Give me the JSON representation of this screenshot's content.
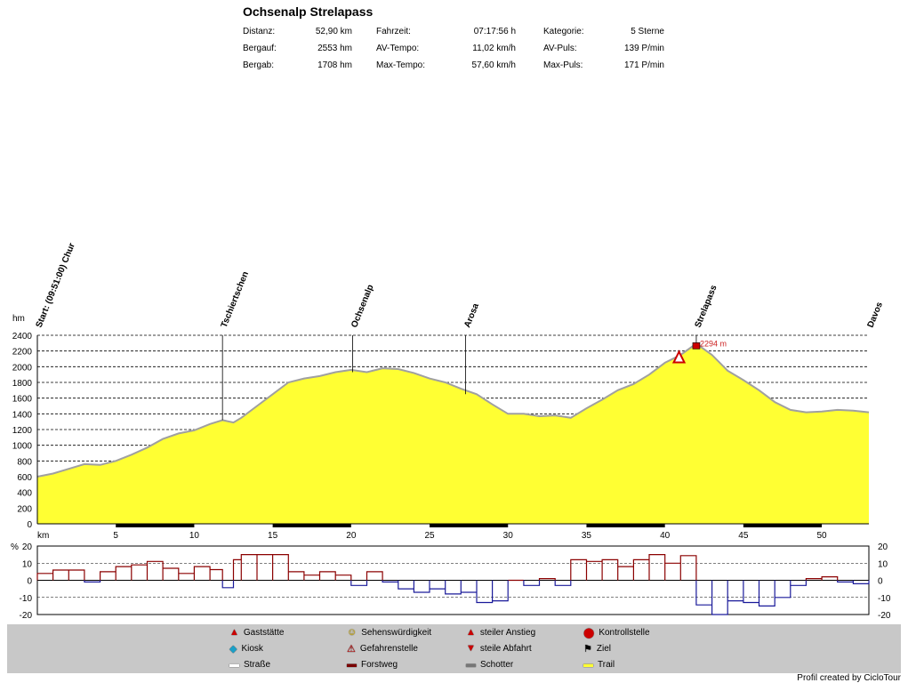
{
  "header": {
    "title": "Ochsenalp Strelapass",
    "stats": [
      {
        "label": "Distanz:",
        "value": "52,90 km"
      },
      {
        "label": "Bergauf:",
        "value": "2553 hm"
      },
      {
        "label": "Bergab:",
        "value": "1708 hm"
      },
      {
        "label": "Fahrzeit:",
        "value": "07:17:56 h"
      },
      {
        "label": "AV-Tempo:",
        "value": "11,02 km/h"
      },
      {
        "label": "Max-Tempo:",
        "value": "57,60 km/h"
      },
      {
        "label": "Kategorie:",
        "value": "5 Sterne"
      },
      {
        "label": "AV-Puls:",
        "value": "139 P/min"
      },
      {
        "label": "Max-Puls:",
        "value": "171 P/min"
      }
    ]
  },
  "chart_data": [
    {
      "type": "area",
      "ylabel": "hm",
      "xlabel": "km",
      "ylim": [
        0,
        2400
      ],
      "xlim": [
        0,
        53
      ],
      "yticks": [
        0,
        200,
        400,
        600,
        800,
        1000,
        1200,
        1400,
        1600,
        1800,
        2000,
        2200,
        2400
      ],
      "xticks": [
        5,
        10,
        15,
        20,
        25,
        30,
        35,
        40,
        45,
        50
      ],
      "grid": true,
      "x": [
        0,
        1,
        2,
        3,
        4,
        5,
        6,
        7,
        8,
        9,
        10,
        11,
        11.8,
        12.5,
        13,
        14,
        15,
        16,
        17,
        18,
        19,
        20,
        21,
        22,
        23,
        24,
        25,
        26,
        27,
        28,
        29,
        30,
        31,
        32,
        33,
        34,
        35,
        36,
        37,
        38,
        39,
        40,
        41,
        42,
        43,
        44,
        45,
        46,
        47,
        48,
        49,
        50,
        51,
        52,
        53
      ],
      "y": [
        600,
        640,
        700,
        760,
        750,
        800,
        880,
        970,
        1080,
        1150,
        1190,
        1270,
        1320,
        1290,
        1350,
        1500,
        1650,
        1800,
        1850,
        1880,
        1930,
        1960,
        1930,
        1980,
        1970,
        1920,
        1850,
        1800,
        1720,
        1650,
        1520,
        1400,
        1400,
        1370,
        1380,
        1350,
        1470,
        1580,
        1700,
        1780,
        1900,
        2050,
        2150,
        2294,
        2150,
        1950,
        1830,
        1700,
        1550,
        1450,
        1420,
        1430,
        1450,
        1440,
        1420
      ],
      "waypoints": [
        {
          "km": 0,
          "label": "Start: (09:51:00) Chur"
        },
        {
          "km": 11.8,
          "label": "Tschiertschen"
        },
        {
          "km": 20.1,
          "label": "Ochsenalp"
        },
        {
          "km": 27.3,
          "label": "Arosa"
        },
        {
          "km": 42,
          "label": "Strelapass"
        },
        {
          "km": 53,
          "label": "Davos"
        }
      ],
      "peak_label": {
        "km": 42,
        "text": "2294 m"
      }
    },
    {
      "type": "line",
      "ylabel": "%",
      "ylim": [
        -20,
        20
      ],
      "yticks": [
        -20,
        -10,
        0,
        10,
        20
      ],
      "right_yticks": [
        -20,
        -10,
        0,
        10,
        20
      ],
      "xlim": [
        0,
        53
      ],
      "grid": true
    }
  ],
  "legend": [
    {
      "icon": "house-icon",
      "label": "Gaststätte"
    },
    {
      "icon": "kiosk-icon",
      "label": "Kiosk"
    },
    {
      "icon": "road-swatch-icon",
      "label": "Straße"
    },
    {
      "icon": "smiley-icon",
      "label": "Sehenswürdigkeit"
    },
    {
      "icon": "warning-icon",
      "label": "Gefahrenstelle"
    },
    {
      "icon": "forest-swatch-icon",
      "label": "Forstweg"
    },
    {
      "icon": "steep-up-icon",
      "label": "steiler Anstieg"
    },
    {
      "icon": "steep-down-icon",
      "label": "steile Abfahrt"
    },
    {
      "icon": "gravel-swatch-icon",
      "label": "Schotter"
    },
    {
      "icon": "stop-icon",
      "label": "Kontrollstelle"
    },
    {
      "icon": "finish-flag-icon",
      "label": "Ziel"
    },
    {
      "icon": "trail-swatch-icon",
      "label": "Trail"
    }
  ],
  "footer": {
    "credit": "Profil created by CicloTour"
  },
  "colors": {
    "fill": "#ffff33",
    "road": "#a0a0a0",
    "forest": "#7a0000",
    "grade_up": "#8b0000",
    "grade_down": "#1a1a9a"
  }
}
